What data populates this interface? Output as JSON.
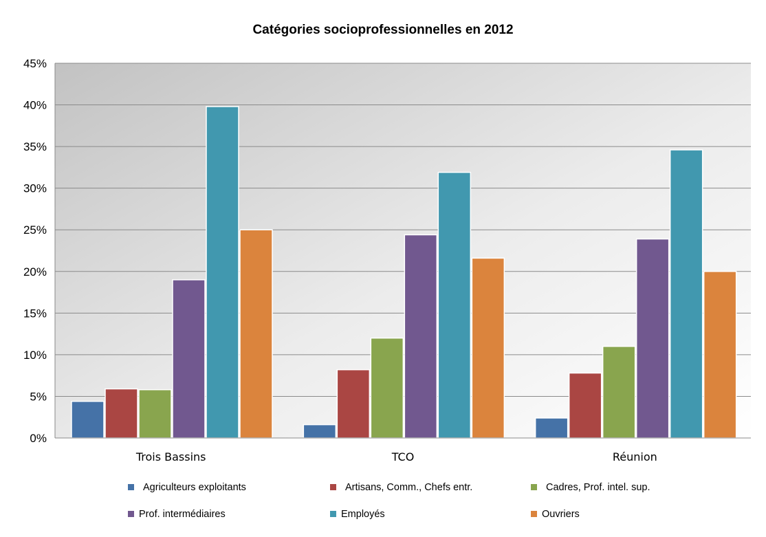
{
  "chart_data": {
    "type": "bar",
    "title": "Catégories socioprofessionnelles en 2012",
    "categories": [
      "Trois Bassins",
      "TCO",
      "Réunion"
    ],
    "ylim": [
      0,
      45
    ],
    "yticks": [
      "0%",
      "5%",
      "10%",
      "15%",
      "20%",
      "25%",
      "30%",
      "35%",
      "40%",
      "45%"
    ],
    "ytick_values": [
      0,
      5,
      10,
      15,
      20,
      25,
      30,
      35,
      40,
      45
    ],
    "grid": true,
    "legend_position": "bottom",
    "series": [
      {
        "name": "Agriculteurs exploitants",
        "color": "#4572A7",
        "values": [
          4.4,
          1.6,
          2.4
        ]
      },
      {
        "name": "Artisans, Comm., Chefs entr.",
        "color": "#AA4643",
        "values": [
          5.9,
          8.2,
          7.8
        ]
      },
      {
        "name": "Cadres, Prof. intel. sup.",
        "color": "#89A54E",
        "values": [
          5.8,
          12.0,
          11.0
        ]
      },
      {
        "name": "Prof. intermédiaires",
        "color": "#71588F",
        "values": [
          19.0,
          24.4,
          23.9
        ]
      },
      {
        "name": "Employés",
        "color": "#4198AF",
        "values": [
          39.8,
          31.9,
          34.6
        ]
      },
      {
        "name": "Ouvriers",
        "color": "#DB843D",
        "values": [
          25.0,
          21.6,
          20.0
        ]
      }
    ]
  }
}
